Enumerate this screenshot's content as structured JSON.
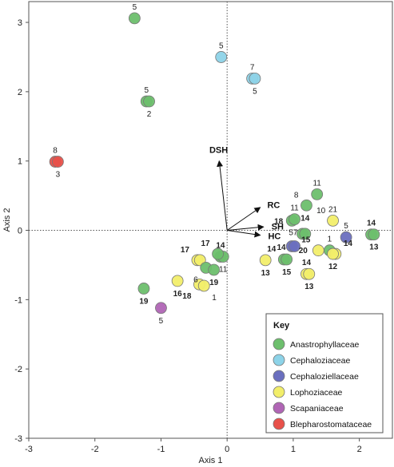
{
  "chart_data": {
    "type": "scatter",
    "xlabel": "Axis 1",
    "ylabel": "Axis 2",
    "xlim": [
      -3,
      2.5
    ],
    "ylim": [
      -3,
      3.3
    ],
    "xticks": [
      -3,
      -2,
      -1,
      0,
      1,
      2
    ],
    "yticks": [
      -3,
      -2,
      -1,
      0,
      1,
      2,
      3
    ],
    "grid": false,
    "zero_lines": "dotted",
    "legend": {
      "title": "Key",
      "placement": "bottom-right",
      "entries": [
        {
          "name": "Anastrophyllaceae",
          "color": "#6dbf6d"
        },
        {
          "name": "Cephaloziaceae",
          "color": "#8dd3e8"
        },
        {
          "name": "Cephaloziellaceae",
          "color": "#6a6fbf"
        },
        {
          "name": "Lophoziaceae",
          "color": "#f2ee6a"
        },
        {
          "name": "Scapaniaceae",
          "color": "#b065b5"
        },
        {
          "name": "Blepharostomataceae",
          "color": "#e8514a"
        }
      ]
    },
    "vectors": [
      {
        "label": "DSH",
        "x": -0.12,
        "y": 1.0
      },
      {
        "label": "RC",
        "x": 0.5,
        "y": 0.33
      },
      {
        "label": "SH",
        "x": 0.55,
        "y": 0.05
      },
      {
        "label": "HC",
        "x": 0.5,
        "y": -0.07
      }
    ],
    "points": [
      {
        "family": "Anastrophyllaceae",
        "x": -1.4,
        "y": 3.06,
        "label": "5",
        "label_pos": "above",
        "bold": false
      },
      {
        "family": "Cephaloziaceae",
        "x": -0.09,
        "y": 2.5,
        "label": "5",
        "label_pos": "above",
        "bold": false
      },
      {
        "family": "Cephaloziaceae",
        "x": 0.38,
        "y": 2.19,
        "label": "7",
        "label_pos": "above",
        "bold": false
      },
      {
        "family": "Cephaloziaceae",
        "x": 0.42,
        "y": 2.19,
        "label": "5",
        "label_pos": "below",
        "bold": false
      },
      {
        "family": "Anastrophyllaceae",
        "x": -1.22,
        "y": 1.86,
        "label": "5",
        "label_pos": "above",
        "bold": false
      },
      {
        "family": "Anastrophyllaceae",
        "x": -1.18,
        "y": 1.86,
        "label": "2",
        "label_pos": "below",
        "bold": false
      },
      {
        "family": "Blepharostomataceae",
        "x": -2.6,
        "y": 0.99,
        "label": "8",
        "label_pos": "above",
        "bold": false
      },
      {
        "family": "Blepharostomataceae",
        "x": -2.56,
        "y": 0.99,
        "label": "3",
        "label_pos": "below",
        "bold": false
      },
      {
        "family": "Anastrophyllaceae",
        "x": 1.36,
        "y": 0.52,
        "label": "11",
        "label_pos": "above",
        "bold": false
      },
      {
        "family": "Anastrophyllaceae",
        "x": 1.2,
        "y": 0.36,
        "label": "8",
        "label_pos": "above-left",
        "bold": false
      },
      {
        "family": "Lophoziaceae",
        "x": 1.6,
        "y": 0.14,
        "label": "21",
        "label_pos": "above",
        "bold": false
      },
      {
        "family": "Anastrophyllaceae",
        "x": 0.98,
        "y": 0.14,
        "label": "18",
        "label_pos": "left",
        "bold": true
      },
      {
        "family": "Anastrophyllaceae",
        "x": 1.02,
        "y": 0.16,
        "label": "11",
        "label_pos": "above",
        "bold": false
      },
      {
        "family": "Anastrophyllaceae",
        "x": 1.14,
        "y": -0.05,
        "label": "",
        "label_pos": "none",
        "bold": false
      },
      {
        "family": "Anastrophyllaceae",
        "x": 1.18,
        "y": -0.05,
        "label": "",
        "label_pos": "none",
        "bold": false
      },
      {
        "family": "Anastrophyllaceae",
        "x": 2.18,
        "y": -0.06,
        "label": "14",
        "label_pos": "above",
        "bold": true
      },
      {
        "family": "Anastrophyllaceae",
        "x": 2.22,
        "y": -0.06,
        "label": "13",
        "label_pos": "below",
        "bold": true
      },
      {
        "family": "Cephaloziellaceae",
        "x": 0.98,
        "y": -0.23,
        "label": "",
        "label_pos": "none",
        "bold": false
      },
      {
        "family": "Cephaloziellaceae",
        "x": 1.02,
        "y": -0.23,
        "label": "",
        "label_pos": "none",
        "bold": false
      },
      {
        "family": "Cephaloziellaceae",
        "x": 1.8,
        "y": -0.1,
        "label": "5",
        "label_pos": "above",
        "bold": false
      },
      {
        "family": "Lophoziaceae",
        "x": 1.38,
        "y": -0.29,
        "label": "15",
        "label_pos": "above-left",
        "bold": true
      },
      {
        "family": "Anastrophyllaceae",
        "x": 1.55,
        "y": -0.29,
        "label": "1",
        "label_pos": "above",
        "bold": false
      },
      {
        "family": "Lophoziaceae",
        "x": 1.64,
        "y": -0.34,
        "label": "14",
        "label_pos": "above-right",
        "bold": true
      },
      {
        "family": "Lophoziaceae",
        "x": 1.6,
        "y": -0.34,
        "label": "12",
        "label_pos": "below",
        "bold": true
      },
      {
        "family": "Anastrophyllaceae",
        "x": 0.86,
        "y": -0.42,
        "label": "14",
        "label_pos": "above-left",
        "bold": true
      },
      {
        "family": "Anastrophyllaceae",
        "x": 0.9,
        "y": -0.42,
        "label": "15",
        "label_pos": "below",
        "bold": true
      },
      {
        "family": "Lophoziaceae",
        "x": 0.58,
        "y": -0.43,
        "label": "13",
        "label_pos": "below",
        "bold": true
      },
      {
        "family": "Lophoziaceae",
        "x": 1.2,
        "y": -0.63,
        "label": "14",
        "label_pos": "above",
        "bold": true
      },
      {
        "family": "Lophoziaceae",
        "x": 1.24,
        "y": -0.63,
        "label": "13",
        "label_pos": "below",
        "bold": true
      },
      {
        "family": "Anastrophyllaceae",
        "x": -0.1,
        "y": -0.38,
        "label": "14",
        "label_pos": "above",
        "bold": true
      },
      {
        "family": "Anastrophyllaceae",
        "x": -0.06,
        "y": -0.38,
        "label": "11",
        "label_pos": "below",
        "bold": false
      },
      {
        "family": "Anastrophyllaceae",
        "x": -0.14,
        "y": -0.34,
        "label": "17",
        "label_pos": "above-left",
        "bold": true
      },
      {
        "family": "Lophoziaceae",
        "x": -0.45,
        "y": -0.43,
        "label": "17",
        "label_pos": "above-left",
        "bold": true
      },
      {
        "family": "Lophoziaceae",
        "x": -0.41,
        "y": -0.43,
        "label": "",
        "label_pos": "none",
        "bold": false
      },
      {
        "family": "Anastrophyllaceae",
        "x": -0.32,
        "y": -0.54,
        "label": "6",
        "label_pos": "below-left",
        "bold": false
      },
      {
        "family": "Anastrophyllaceae",
        "x": -0.2,
        "y": -0.57,
        "label": "19",
        "label_pos": "below",
        "bold": true
      },
      {
        "family": "Lophoziaceae",
        "x": -0.75,
        "y": -0.73,
        "label": "16",
        "label_pos": "below",
        "bold": true
      },
      {
        "family": "Lophoziaceae",
        "x": -0.42,
        "y": -0.78,
        "label": "18",
        "label_pos": "below-left",
        "bold": true
      },
      {
        "family": "Lophoziaceae",
        "x": -0.35,
        "y": -0.8,
        "label": "1",
        "label_pos": "below-right",
        "bold": false
      },
      {
        "family": "Anastrophyllaceae",
        "x": -1.26,
        "y": -0.84,
        "label": "19",
        "label_pos": "below",
        "bold": true
      },
      {
        "family": "Scapaniaceae",
        "x": -1.0,
        "y": -1.12,
        "label": "5",
        "label_pos": "below",
        "bold": false
      }
    ],
    "free_labels": [
      {
        "text": "10",
        "x": 1.42,
        "y": 0.25,
        "bold": false
      },
      {
        "text": "14",
        "x": 1.18,
        "y": 0.14,
        "bold": true
      },
      {
        "text": "57",
        "x": 1.0,
        "y": -0.07,
        "bold": false
      },
      {
        "text": "14",
        "x": 0.82,
        "y": -0.28,
        "bold": true
      },
      {
        "text": "20",
        "x": 1.15,
        "y": -0.33,
        "bold": true
      }
    ]
  }
}
